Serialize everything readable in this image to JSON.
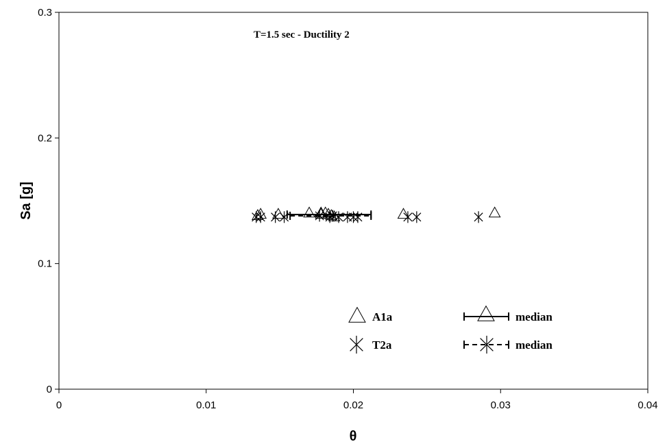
{
  "chart_data": {
    "type": "scatter",
    "title": "",
    "annotation": "T=1.5 sec - Ductility 2",
    "xlabel": "θ",
    "ylabel": "Sa [g]",
    "xlim": [
      0,
      0.04
    ],
    "ylim": [
      0,
      0.3
    ],
    "x_ticks": [
      "0",
      "0.01",
      "0.02",
      "0.03",
      "0.04"
    ],
    "y_ticks": [
      "0",
      "0.1",
      "0.2",
      "0.3"
    ],
    "grid": false,
    "legend_position": "bottom-right",
    "series": [
      {
        "name": "A1a",
        "marker": "triangle",
        "x": [
          0.0135,
          0.0137,
          0.0149,
          0.017,
          0.0178,
          0.0181,
          0.0183,
          0.0185,
          0.0187,
          0.0234,
          0.0296
        ],
        "y": [
          0.138,
          0.139,
          0.139,
          0.14,
          0.14,
          0.14,
          0.139,
          0.138,
          0.137,
          0.139,
          0.14
        ]
      },
      {
        "name": "median",
        "marker": "triangle",
        "line": "solid",
        "x": [
          0.0178
        ],
        "y": [
          0.139
        ],
        "xerr": [
          0.0155,
          0.0212
        ]
      },
      {
        "name": "T2a",
        "marker": "asterisk",
        "x": [
          0.0134,
          0.0137,
          0.0147,
          0.0153,
          0.0177,
          0.0184,
          0.019,
          0.0196,
          0.02,
          0.0203,
          0.0237,
          0.0243,
          0.0285
        ],
        "y": [
          0.137,
          0.137,
          0.137,
          0.137,
          0.138,
          0.137,
          0.137,
          0.137,
          0.137,
          0.137,
          0.137,
          0.137,
          0.137
        ]
      },
      {
        "name": "median",
        "marker": "asterisk",
        "line": "dashed",
        "x": [
          0.0186
        ],
        "y": [
          0.138
        ],
        "xerr": [
          0.0157,
          0.0212
        ]
      }
    ]
  }
}
